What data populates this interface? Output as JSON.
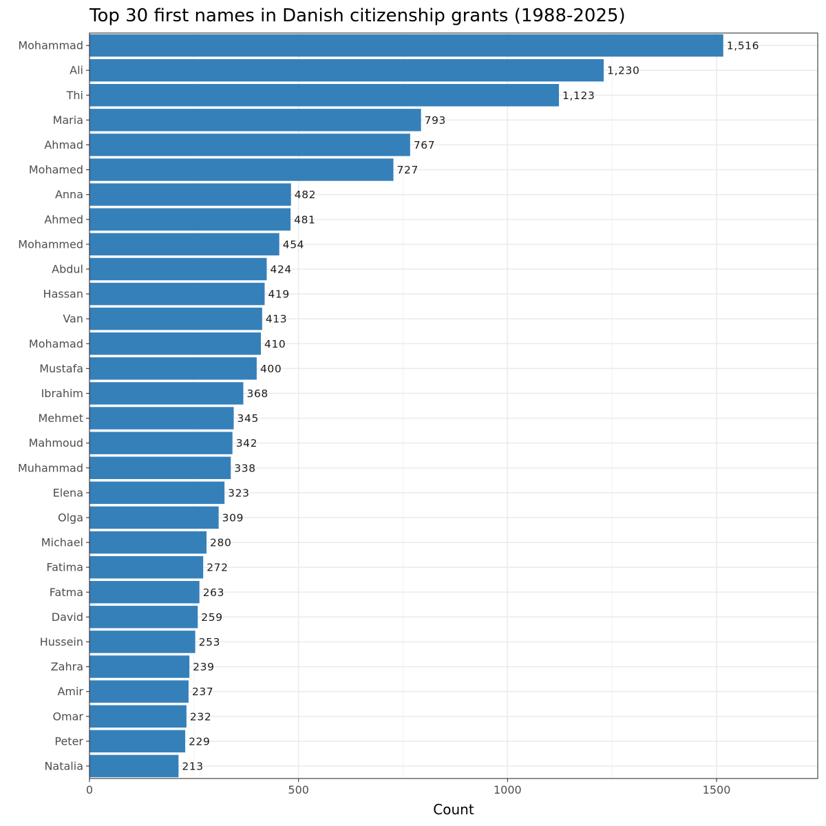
{
  "chart_data": {
    "type": "bar",
    "orientation": "horizontal",
    "title": "Top 30 first names in Danish citizenship grants (1988-2025)",
    "xlabel": "Count",
    "ylabel": "",
    "xlim": [
      0,
      1742
    ],
    "xticks": [
      0,
      500,
      1000,
      1500
    ],
    "xtick_labels": [
      "0",
      "500",
      "1000",
      "1500"
    ],
    "grid": true,
    "bar_color": "#3680BA",
    "categories": [
      "Mohammad",
      "Ali",
      "Thi",
      "Maria",
      "Ahmad",
      "Mohamed",
      "Anna",
      "Ahmed",
      "Mohammed",
      "Abdul",
      "Hassan",
      "Van",
      "Mohamad",
      "Mustafa",
      "Ibrahim",
      "Mehmet",
      "Mahmoud",
      "Muhammad",
      "Elena",
      "Olga",
      "Michael",
      "Fatima",
      "Fatma",
      "David",
      "Hussein",
      "Zahra",
      "Amir",
      "Omar",
      "Peter",
      "Natalia"
    ],
    "values": [
      1516,
      1230,
      1123,
      793,
      767,
      727,
      482,
      481,
      454,
      424,
      419,
      413,
      410,
      400,
      368,
      345,
      342,
      338,
      323,
      309,
      280,
      272,
      263,
      259,
      253,
      239,
      237,
      232,
      229,
      213
    ],
    "value_labels": [
      "1,516",
      "1,230",
      "1,123",
      "793",
      "767",
      "727",
      "482",
      "481",
      "454",
      "424",
      "419",
      "413",
      "410",
      "400",
      "368",
      "345",
      "342",
      "338",
      "323",
      "309",
      "280",
      "272",
      "263",
      "259",
      "253",
      "239",
      "237",
      "232",
      "229",
      "213"
    ]
  }
}
